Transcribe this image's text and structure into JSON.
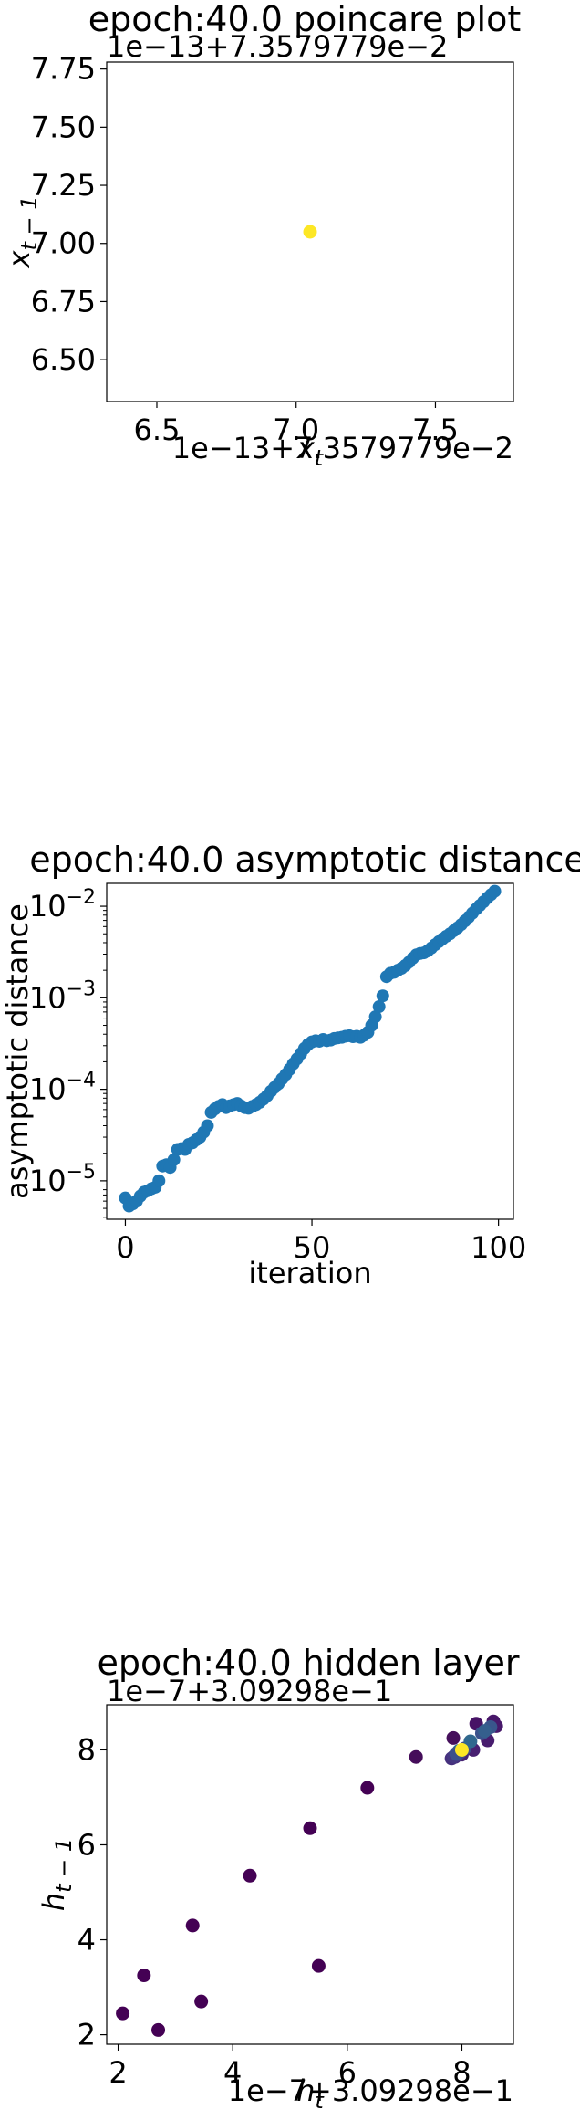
{
  "chart_data": [
    {
      "type": "scatter",
      "title": "epoch:40.0 poincare plot",
      "xlabel": "x_t",
      "ylabel": "x_{t-1}",
      "x_offset_label": "1e−13+7.3579779e−2",
      "y_offset_label": "1e−13+7.3579779e−2",
      "xlim": [
        6.32,
        7.78
      ],
      "ylim": [
        6.32,
        7.78
      ],
      "xticks": [
        6.5,
        7.0,
        7.5
      ],
      "xtick_labels": [
        "6.5",
        "7.0",
        "7.5"
      ],
      "yticks": [
        6.5,
        6.75,
        7.0,
        7.25,
        7.5,
        7.75
      ],
      "ytick_labels": [
        "6.50",
        "6.75",
        "7.00",
        "7.25",
        "7.50",
        "7.75"
      ],
      "points": [
        {
          "x": 7.05,
          "y": 7.05,
          "color": "#fde725"
        }
      ]
    },
    {
      "type": "scatter",
      "title": "epoch:40.0 asymptotic distance",
      "xlabel": "iteration",
      "ylabel": "asymptotic distance",
      "yscale": "log",
      "xlim": [
        -5,
        104
      ],
      "ylim_log10": [
        -5.42,
        -1.75
      ],
      "xticks": [
        0,
        50,
        100
      ],
      "xtick_labels": [
        "0",
        "50",
        "100"
      ],
      "yticks_log10": [
        -5,
        -4,
        -3,
        -2
      ],
      "ytick_base": "10",
      "ytick_exponents": [
        "−5",
        "−4",
        "−3",
        "−2"
      ],
      "color": "#1f77b4",
      "x": [
        0,
        1,
        2,
        3,
        4,
        5,
        6,
        7,
        8,
        9,
        10,
        11,
        12,
        13,
        14,
        15,
        16,
        17,
        18,
        19,
        20,
        21,
        22,
        23,
        24,
        25,
        26,
        27,
        28,
        29,
        30,
        31,
        32,
        33,
        34,
        35,
        36,
        37,
        38,
        39,
        40,
        41,
        42,
        43,
        44,
        45,
        46,
        47,
        48,
        49,
        50,
        51,
        52,
        53,
        54,
        55,
        56,
        57,
        58,
        59,
        60,
        61,
        62,
        63,
        64,
        65,
        66,
        67,
        68,
        69,
        70,
        71,
        72,
        73,
        74,
        75,
        76,
        77,
        78,
        79,
        80,
        81,
        82,
        83,
        84,
        85,
        86,
        87,
        88,
        89,
        90,
        91,
        92,
        93,
        94,
        95,
        96,
        97,
        98,
        99
      ],
      "y": [
        6.5e-06,
        5.3e-06,
        5.6e-06,
        6e-06,
        6.8e-06,
        7.5e-06,
        7.8e-06,
        8.2e-06,
        8.5e-06,
        1e-05,
        1.45e-05,
        1.5e-05,
        1.4e-05,
        1.7e-05,
        2.2e-05,
        2.25e-05,
        2.2e-05,
        2.5e-05,
        2.6e-05,
        2.8e-05,
        3e-05,
        3.4e-05,
        4e-05,
        5.6e-05,
        6.1e-05,
        6.5e-05,
        6.8e-05,
        6.3e-05,
        6.6e-05,
        6.8e-05,
        7e-05,
        6.6e-05,
        6.3e-05,
        6.2e-05,
        6.5e-05,
        6.8e-05,
        7.2e-05,
        7.8e-05,
        8.5e-05,
        9.5e-05,
        0.000105,
        0.000115,
        0.00013,
        0.000145,
        0.000165,
        0.00019,
        0.000215,
        0.000245,
        0.00028,
        0.00031,
        0.00033,
        0.00034,
        0.000335,
        0.00035,
        0.00034,
        0.000345,
        0.00036,
        0.000365,
        0.00037,
        0.00038,
        0.000385,
        0.000375,
        0.00038,
        0.00037,
        0.00039,
        0.00042,
        0.0005,
        0.00062,
        0.0008,
        0.00105,
        0.0017,
        0.00185,
        0.0019,
        0.002,
        0.0021,
        0.00225,
        0.00245,
        0.0027,
        0.00295,
        0.00305,
        0.0031,
        0.00325,
        0.0035,
        0.0038,
        0.0041,
        0.0044,
        0.0047,
        0.005,
        0.0054,
        0.0058,
        0.0063,
        0.0069,
        0.0076,
        0.0084,
        0.0093,
        0.0102,
        0.0112,
        0.0123,
        0.0134,
        0.0146
      ]
    },
    {
      "type": "scatter",
      "title": "epoch:40.0 hidden layer",
      "xlabel": "h_t",
      "ylabel": "h_{t-1}",
      "x_offset_label": "1e−7+3.09298e−1",
      "y_offset_label": "1e−7+3.09298e−1",
      "xlim": [
        1.8,
        8.9
      ],
      "ylim": [
        1.8,
        8.95
      ],
      "xticks": [
        2,
        4,
        6,
        8
      ],
      "xtick_labels": [
        "2",
        "4",
        "6",
        "8"
      ],
      "yticks": [
        2,
        4,
        6,
        8
      ],
      "ytick_labels": [
        "2",
        "4",
        "6",
        "8"
      ],
      "points": [
        {
          "x": 2.08,
          "y": 2.45,
          "color": "#440154"
        },
        {
          "x": 2.45,
          "y": 3.25,
          "color": "#440154"
        },
        {
          "x": 2.7,
          "y": 2.1,
          "color": "#440154"
        },
        {
          "x": 3.3,
          "y": 4.3,
          "color": "#440154"
        },
        {
          "x": 3.45,
          "y": 2.7,
          "color": "#440154"
        },
        {
          "x": 4.3,
          "y": 5.35,
          "color": "#440154"
        },
        {
          "x": 5.35,
          "y": 6.35,
          "color": "#440154"
        },
        {
          "x": 5.5,
          "y": 3.45,
          "color": "#440154"
        },
        {
          "x": 6.35,
          "y": 7.2,
          "color": "#440154"
        },
        {
          "x": 7.2,
          "y": 7.85,
          "color": "#450d5a"
        },
        {
          "x": 7.85,
          "y": 8.25,
          "color": "#46105c"
        },
        {
          "x": 8.25,
          "y": 8.55,
          "color": "#471366"
        },
        {
          "x": 8.55,
          "y": 8.6,
          "color": "#481769"
        },
        {
          "x": 8.6,
          "y": 8.5,
          "color": "#48196b"
        },
        {
          "x": 8.45,
          "y": 8.2,
          "color": "#481c6e"
        },
        {
          "x": 8.2,
          "y": 8.0,
          "color": "#482071"
        },
        {
          "x": 8.0,
          "y": 7.9,
          "color": "#472374"
        },
        {
          "x": 7.88,
          "y": 7.85,
          "color": "#472a7a"
        },
        {
          "x": 7.82,
          "y": 7.82,
          "color": "#46307e"
        },
        {
          "x": 7.86,
          "y": 7.86,
          "color": "#453781"
        },
        {
          "x": 7.92,
          "y": 7.9,
          "color": "#433e85"
        },
        {
          "x": 7.97,
          "y": 7.95,
          "color": "#414487"
        },
        {
          "x": 8.05,
          "y": 8.03,
          "color": "#3e4a89"
        },
        {
          "x": 8.35,
          "y": 8.35,
          "color": "#3b528b"
        },
        {
          "x": 8.5,
          "y": 8.48,
          "color": "#39568c"
        },
        {
          "x": 8.4,
          "y": 8.4,
          "color": "#355f8d"
        },
        {
          "x": 8.15,
          "y": 8.18,
          "color": "#31688e"
        },
        {
          "x": 7.95,
          "y": 7.98,
          "color": "#2c728e"
        },
        {
          "x": 7.9,
          "y": 7.92,
          "color": "#3b528b"
        },
        {
          "x": 8.0,
          "y": 8.0,
          "color": "#fde725"
        }
      ]
    }
  ]
}
